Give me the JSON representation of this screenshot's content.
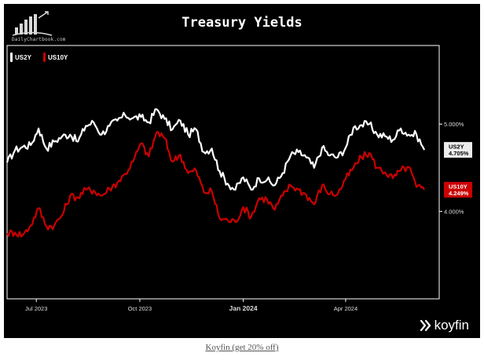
{
  "header": {
    "title": "Treasury Yields",
    "logo_text": "DailyChartbook.com"
  },
  "footer": {
    "brand": "koyfin",
    "link_text": "Koyfin (get 20% off)"
  },
  "colors": {
    "background": "#000000",
    "us2y": "#ffffff",
    "us10y": "#cc0000",
    "axis_text": "#dddddd"
  },
  "chart_data": {
    "type": "line",
    "title": "Treasury Yields",
    "xlabel": "",
    "ylabel": "",
    "x_ticks": [
      "Jul 2023",
      "Oct 2023",
      "Jan 2024",
      "Apr 2024"
    ],
    "x_tick_dates": [
      "2023-07-01",
      "2023-10-01",
      "2024-01-01",
      "2024-04-01"
    ],
    "x_range": [
      "2023-06-05",
      "2024-06-12"
    ],
    "y_ticks": [
      "4.000%",
      "5.000%"
    ],
    "y_tick_values": [
      4.0,
      5.0
    ],
    "ylim": [
      3.0,
      5.9
    ],
    "grid": false,
    "legend_position": "top-left",
    "series": [
      {
        "name": "US2Y",
        "color": "#ffffff",
        "last_label": "4.705%",
        "points": [
          [
            "2023-06-05",
            4.56
          ],
          [
            "2023-06-12",
            4.7
          ],
          [
            "2023-06-19",
            4.74
          ],
          [
            "2023-06-26",
            4.76
          ],
          [
            "2023-07-03",
            4.95
          ],
          [
            "2023-07-10",
            4.72
          ],
          [
            "2023-07-17",
            4.8
          ],
          [
            "2023-07-24",
            4.86
          ],
          [
            "2023-07-31",
            4.88
          ],
          [
            "2023-08-07",
            4.8
          ],
          [
            "2023-08-14",
            4.98
          ],
          [
            "2023-08-21",
            5.02
          ],
          [
            "2023-08-28",
            4.88
          ],
          [
            "2023-09-04",
            4.98
          ],
          [
            "2023-09-11",
            5.04
          ],
          [
            "2023-09-18",
            5.1
          ],
          [
            "2023-09-25",
            5.07
          ],
          [
            "2023-10-02",
            5.08
          ],
          [
            "2023-10-09",
            5.02
          ],
          [
            "2023-10-16",
            5.17
          ],
          [
            "2023-10-23",
            5.06
          ],
          [
            "2023-10-30",
            4.94
          ],
          [
            "2023-11-06",
            5.04
          ],
          [
            "2023-11-13",
            4.88
          ],
          [
            "2023-11-20",
            4.94
          ],
          [
            "2023-11-27",
            4.68
          ],
          [
            "2023-12-04",
            4.72
          ],
          [
            "2023-12-11",
            4.46
          ],
          [
            "2023-12-18",
            4.32
          ],
          [
            "2023-12-25",
            4.25
          ],
          [
            "2024-01-01",
            4.39
          ],
          [
            "2024-01-08",
            4.25
          ],
          [
            "2024-01-15",
            4.38
          ],
          [
            "2024-01-22",
            4.36
          ],
          [
            "2024-01-29",
            4.3
          ],
          [
            "2024-02-05",
            4.44
          ],
          [
            "2024-02-12",
            4.64
          ],
          [
            "2024-02-19",
            4.68
          ],
          [
            "2024-02-26",
            4.62
          ],
          [
            "2024-03-04",
            4.5
          ],
          [
            "2024-03-11",
            4.73
          ],
          [
            "2024-03-18",
            4.64
          ],
          [
            "2024-03-25",
            4.62
          ],
          [
            "2024-04-01",
            4.73
          ],
          [
            "2024-04-08",
            4.96
          ],
          [
            "2024-04-15",
            4.99
          ],
          [
            "2024-04-22",
            5.0
          ],
          [
            "2024-04-29",
            4.88
          ],
          [
            "2024-05-06",
            4.86
          ],
          [
            "2024-05-13",
            4.82
          ],
          [
            "2024-05-20",
            4.95
          ],
          [
            "2024-05-27",
            4.88
          ],
          [
            "2024-06-03",
            4.88
          ],
          [
            "2024-06-10",
            4.705
          ]
        ]
      },
      {
        "name": "US10Y",
        "color": "#cc0000",
        "last_label": "4.249%",
        "points": [
          [
            "2023-06-05",
            3.75
          ],
          [
            "2023-06-12",
            3.76
          ],
          [
            "2023-06-19",
            3.73
          ],
          [
            "2023-06-26",
            3.84
          ],
          [
            "2023-07-03",
            4.04
          ],
          [
            "2023-07-10",
            3.83
          ],
          [
            "2023-07-17",
            3.84
          ],
          [
            "2023-07-24",
            3.96
          ],
          [
            "2023-07-31",
            4.18
          ],
          [
            "2023-08-07",
            4.16
          ],
          [
            "2023-08-14",
            4.25
          ],
          [
            "2023-08-21",
            4.24
          ],
          [
            "2023-08-28",
            4.18
          ],
          [
            "2023-09-04",
            4.26
          ],
          [
            "2023-09-11",
            4.33
          ],
          [
            "2023-09-18",
            4.43
          ],
          [
            "2023-09-25",
            4.57
          ],
          [
            "2023-10-02",
            4.78
          ],
          [
            "2023-10-09",
            4.63
          ],
          [
            "2023-10-16",
            4.91
          ],
          [
            "2023-10-23",
            4.84
          ],
          [
            "2023-10-30",
            4.57
          ],
          [
            "2023-11-06",
            4.65
          ],
          [
            "2023-11-13",
            4.44
          ],
          [
            "2023-11-20",
            4.47
          ],
          [
            "2023-11-27",
            4.22
          ],
          [
            "2023-12-04",
            4.23
          ],
          [
            "2023-12-11",
            3.92
          ],
          [
            "2023-12-18",
            3.9
          ],
          [
            "2023-12-25",
            3.88
          ],
          [
            "2024-01-01",
            4.05
          ],
          [
            "2024-01-08",
            3.94
          ],
          [
            "2024-01-15",
            4.15
          ],
          [
            "2024-01-22",
            4.14
          ],
          [
            "2024-01-29",
            4.02
          ],
          [
            "2024-02-05",
            4.18
          ],
          [
            "2024-02-12",
            4.3
          ],
          [
            "2024-02-19",
            4.25
          ],
          [
            "2024-02-26",
            4.19
          ],
          [
            "2024-03-04",
            4.08
          ],
          [
            "2024-03-11",
            4.3
          ],
          [
            "2024-03-18",
            4.2
          ],
          [
            "2024-03-25",
            4.2
          ],
          [
            "2024-04-01",
            4.37
          ],
          [
            "2024-04-08",
            4.5
          ],
          [
            "2024-04-15",
            4.62
          ],
          [
            "2024-04-22",
            4.67
          ],
          [
            "2024-04-29",
            4.5
          ],
          [
            "2024-05-06",
            4.45
          ],
          [
            "2024-05-13",
            4.38
          ],
          [
            "2024-05-20",
            4.47
          ],
          [
            "2024-05-27",
            4.51
          ],
          [
            "2024-06-03",
            4.28
          ],
          [
            "2024-06-10",
            4.249
          ]
        ]
      }
    ]
  }
}
